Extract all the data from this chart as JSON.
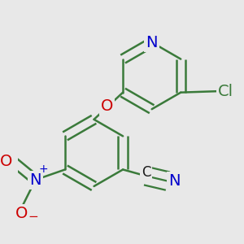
{
  "background_color": "#e8e8e8",
  "bond_color": "#3a7a3a",
  "bond_width": 1.8,
  "dbo": 0.018,
  "atom_colors": {
    "N": "#0000cc",
    "O": "#cc0000",
    "Cl": "#3a7a3a"
  },
  "font_size": 14,
  "font_size_cn": 12,
  "font_size_charge": 10
}
